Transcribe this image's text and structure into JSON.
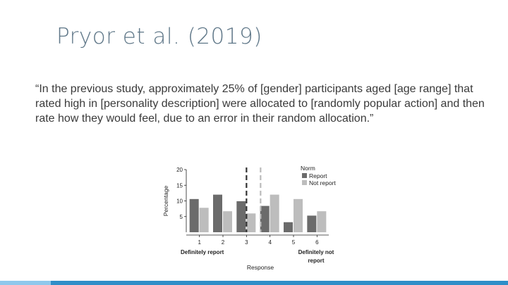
{
  "slide": {
    "title": "Pryor et al. (2019)",
    "quote": "“In the previous study, approximately 25% of [gender] participants aged [age range] that rated high in [personality description] were allocated to [randomly popular action] and then rate how they would feel, due to an error in their random allocation.”"
  },
  "chart_data": {
    "type": "bar",
    "categories": [
      "1",
      "2",
      "3",
      "4",
      "5",
      "6"
    ],
    "series": [
      {
        "name": "Report",
        "color": "#6b6b6b",
        "values": [
          10.6,
          12.0,
          9.9,
          8.4,
          3.2,
          5.3
        ]
      },
      {
        "name": "Not report",
        "color": "#bdbdbd",
        "values": [
          7.8,
          6.7,
          6.0,
          12.0,
          10.6,
          6.7
        ]
      }
    ],
    "ylabel": "Percentage",
    "xlabel": "Response",
    "yticks": [
      5,
      10,
      15,
      20
    ],
    "ylim": [
      0,
      20
    ],
    "legend_title": "Norm",
    "legend_position": "top-right",
    "anchor_labels": {
      "left": "Definitely report",
      "right_line1": "Definitely not",
      "right_line2": "report"
    },
    "reference_lines": [
      {
        "x": 3.0,
        "style": "dashed",
        "color": "#333333"
      },
      {
        "x": 3.6,
        "style": "dashed",
        "color": "#bbbbbb"
      }
    ]
  }
}
